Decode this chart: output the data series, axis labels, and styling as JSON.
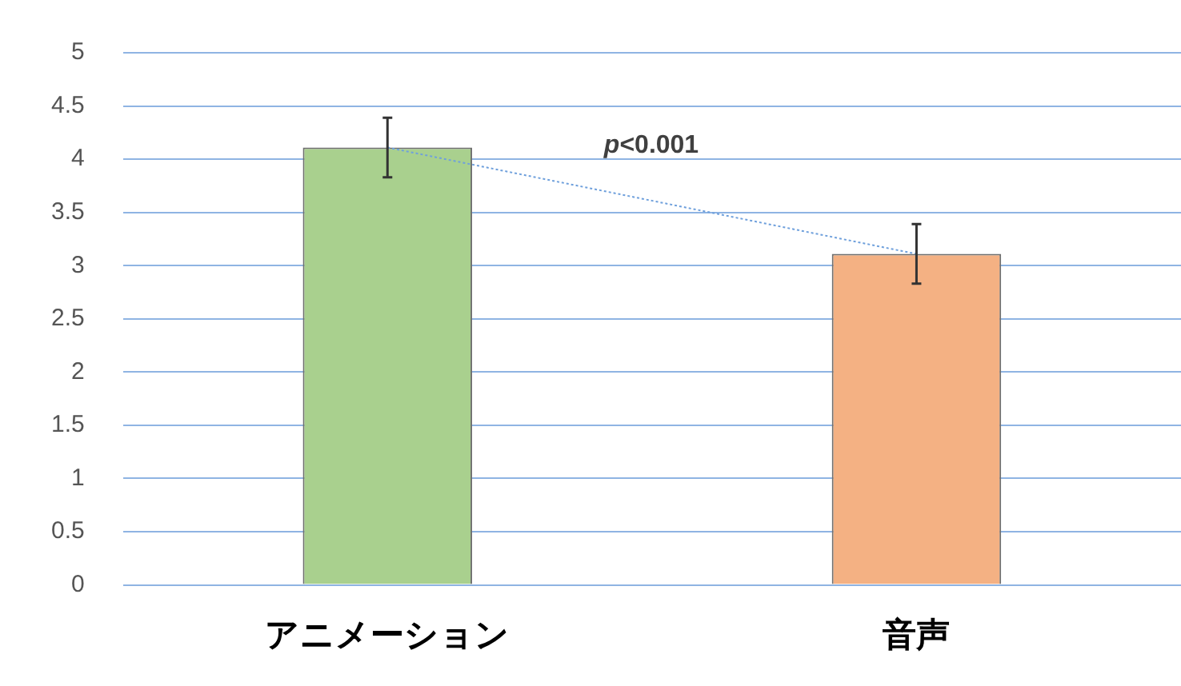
{
  "chart_data": {
    "type": "bar",
    "categories": [
      "アニメーション",
      "音声"
    ],
    "values": [
      4.11,
      3.11
    ],
    "colors": [
      "#a9d08e",
      "#f4b183"
    ],
    "errors": [
      0.28,
      0.28
    ],
    "ylim": [
      0,
      5
    ],
    "yticks": [
      0,
      0.5,
      1,
      1.5,
      2,
      2.5,
      3,
      3.5,
      4,
      4.5,
      5
    ],
    "grid": "y",
    "annotations": [
      "p<0.001"
    ]
  }
}
